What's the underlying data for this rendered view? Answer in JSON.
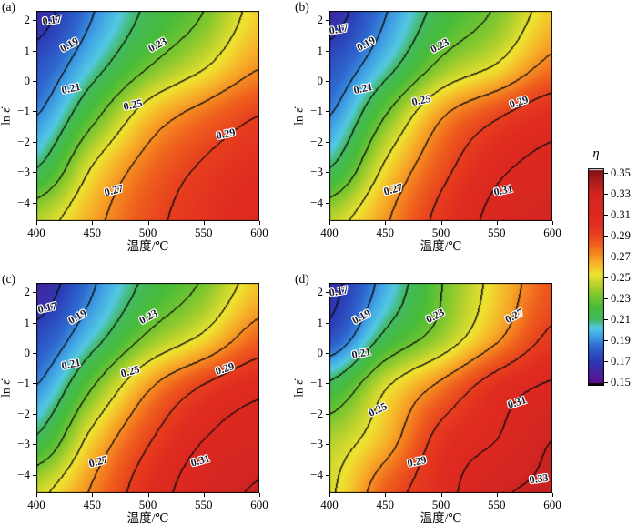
{
  "chart_data": {
    "type": "heatmap",
    "subtype": "filled_contour_map",
    "x_label": "温度/℃",
    "y_label": "ln ε̇",
    "x_tick_labels": [
      "400",
      "450",
      "500",
      "550",
      "600"
    ],
    "x_tick_values": [
      400,
      450,
      500,
      550,
      600
    ],
    "y_tick_labels": [
      "2",
      "1",
      "0",
      "−1",
      "−2",
      "−3",
      "−4"
    ],
    "y_tick_values": [
      2,
      1,
      0,
      -1,
      -2,
      -3,
      -4
    ],
    "x_range": [
      400,
      600
    ],
    "y_range": [
      2.303,
      -4.606
    ],
    "grid_x": [
      400,
      450,
      500,
      550,
      600
    ],
    "grid_y": [
      2.303,
      0.576,
      -1.151,
      -2.879,
      -4.606
    ],
    "contour_levels": [
      0.17,
      0.19,
      0.21,
      0.23,
      0.25,
      0.27,
      0.29,
      0.31,
      0.33
    ],
    "contour_interval": 0.02,
    "colormap_stops": [
      [
        0.15,
        "#5a1190"
      ],
      [
        0.16,
        "#46239e"
      ],
      [
        0.171,
        "#2c3cb5"
      ],
      [
        0.184,
        "#2e68cf"
      ],
      [
        0.194,
        "#41a3e4"
      ],
      [
        0.202,
        "#52c9e3"
      ],
      [
        0.209,
        "#43b963"
      ],
      [
        0.221,
        "#47bc3a"
      ],
      [
        0.233,
        "#7fc72f"
      ],
      [
        0.243,
        "#bdd32d"
      ],
      [
        0.252,
        "#eee32f"
      ],
      [
        0.262,
        "#f6b52a"
      ],
      [
        0.271,
        "#f58a21"
      ],
      [
        0.28,
        "#ef601d"
      ],
      [
        0.29,
        "#e73f1e"
      ],
      [
        0.302,
        "#e02b20"
      ],
      [
        0.328,
        "#d32521"
      ],
      [
        0.34,
        "#ab1c1c"
      ],
      [
        0.35,
        "#7d1215"
      ]
    ],
    "colorbar": {
      "title": "η",
      "range": [
        0.15,
        0.35
      ],
      "tick_labels": [
        "0.35",
        "0.33",
        "0.31",
        "0.29",
        "0.27",
        "0.25",
        "0.23",
        "0.21",
        "0.19",
        "0.17",
        "0.15"
      ],
      "tick_values": [
        0.35,
        0.33,
        0.31,
        0.29,
        0.27,
        0.25,
        0.23,
        0.21,
        0.19,
        0.17,
        0.15
      ]
    },
    "panels": [
      {
        "tag": "(a)",
        "z": [
          [
            0.163,
            0.189,
            0.213,
            0.23,
            0.256
          ],
          [
            0.177,
            0.202,
            0.228,
            0.247,
            0.268
          ],
          [
            0.19,
            0.225,
            0.259,
            0.277,
            0.29
          ],
          [
            0.21,
            0.251,
            0.277,
            0.292,
            0.3
          ],
          [
            0.242,
            0.265,
            0.285,
            0.297,
            0.305
          ]
        ],
        "labels": [
          {
            "text": "0.17",
            "u": 0.069,
            "v": 0.043,
            "rot": -8
          },
          {
            "text": "0.19",
            "u": 0.147,
            "v": 0.16,
            "rot": -28
          },
          {
            "text": "0.23",
            "u": 0.543,
            "v": 0.16,
            "rot": -28
          },
          {
            "text": "0.21",
            "u": 0.155,
            "v": 0.368,
            "rot": -12
          },
          {
            "text": "0.25",
            "u": 0.433,
            "v": 0.446,
            "rot": -12
          },
          {
            "text": "0.29",
            "u": 0.849,
            "v": 0.584,
            "rot": -12
          },
          {
            "text": "0.27",
            "u": 0.347,
            "v": 0.853,
            "rot": -15
          }
        ]
      },
      {
        "tag": "(b)",
        "z": [
          [
            0.163,
            0.189,
            0.216,
            0.232,
            0.258
          ],
          [
            0.177,
            0.202,
            0.233,
            0.25,
            0.274
          ],
          [
            0.19,
            0.23,
            0.268,
            0.288,
            0.302
          ],
          [
            0.21,
            0.253,
            0.284,
            0.306,
            0.316
          ],
          [
            0.243,
            0.268,
            0.295,
            0.315,
            0.325
          ]
        ],
        "labels": [
          {
            "text": "0.17",
            "u": 0.041,
            "v": 0.087,
            "rot": -10
          },
          {
            "text": "0.19",
            "u": 0.163,
            "v": 0.156,
            "rot": -28
          },
          {
            "text": "0.23",
            "u": 0.494,
            "v": 0.165,
            "rot": -28
          },
          {
            "text": "0.21",
            "u": 0.151,
            "v": 0.368,
            "rot": -12
          },
          {
            "text": "0.25",
            "u": 0.412,
            "v": 0.424,
            "rot": -12
          },
          {
            "text": "0.29",
            "u": 0.849,
            "v": 0.433,
            "rot": -18
          },
          {
            "text": "0.27",
            "u": 0.286,
            "v": 0.848,
            "rot": -15
          },
          {
            "text": "0.31",
            "u": 0.78,
            "v": 0.853,
            "rot": -12
          }
        ]
      },
      {
        "tag": "(c)",
        "z": [
          [
            0.16,
            0.188,
            0.214,
            0.232,
            0.258
          ],
          [
            0.175,
            0.202,
            0.232,
            0.252,
            0.278
          ],
          [
            0.191,
            0.23,
            0.268,
            0.292,
            0.306
          ],
          [
            0.213,
            0.256,
            0.288,
            0.31,
            0.32
          ],
          [
            0.246,
            0.272,
            0.3,
            0.32,
            0.332
          ]
        ],
        "labels": [
          {
            "text": "0.17",
            "u": 0.049,
            "v": 0.116,
            "rot": -12
          },
          {
            "text": "0.19",
            "u": 0.184,
            "v": 0.159,
            "rot": -28
          },
          {
            "text": "0.23",
            "u": 0.502,
            "v": 0.159,
            "rot": -28
          },
          {
            "text": "0.21",
            "u": 0.155,
            "v": 0.384,
            "rot": -12
          },
          {
            "text": "0.25",
            "u": 0.42,
            "v": 0.418,
            "rot": -15
          },
          {
            "text": "0.29",
            "u": 0.845,
            "v": 0.405,
            "rot": -18
          },
          {
            "text": "0.27",
            "u": 0.278,
            "v": 0.849,
            "rot": -15
          },
          {
            "text": "0.31",
            "u": 0.735,
            "v": 0.845,
            "rot": -15
          }
        ]
      },
      {
        "tag": "(d)",
        "z": [
          [
            0.165,
            0.196,
            0.229,
            0.256,
            0.283
          ],
          [
            0.176,
            0.213,
            0.237,
            0.266,
            0.293
          ],
          [
            0.215,
            0.249,
            0.275,
            0.3,
            0.313
          ],
          [
            0.241,
            0.262,
            0.296,
            0.31,
            0.33
          ],
          [
            0.248,
            0.281,
            0.302,
            0.327,
            0.332
          ]
        ],
        "labels": [
          {
            "text": "0.17",
            "u": 0.041,
            "v": 0.039,
            "rot": -10
          },
          {
            "text": "0.19",
            "u": 0.143,
            "v": 0.159,
            "rot": -28
          },
          {
            "text": "0.23",
            "u": 0.473,
            "v": 0.155,
            "rot": -28
          },
          {
            "text": "0.27",
            "u": 0.829,
            "v": 0.155,
            "rot": -28
          },
          {
            "text": "0.21",
            "u": 0.143,
            "v": 0.332,
            "rot": -12
          },
          {
            "text": "0.25",
            "u": 0.216,
            "v": 0.603,
            "rot": -25
          },
          {
            "text": "0.31",
            "u": 0.841,
            "v": 0.569,
            "rot": -18
          },
          {
            "text": "0.29",
            "u": 0.392,
            "v": 0.849,
            "rot": -12
          },
          {
            "text": "0.33",
            "u": 0.939,
            "v": 0.931,
            "rot": -8
          }
        ]
      }
    ]
  }
}
